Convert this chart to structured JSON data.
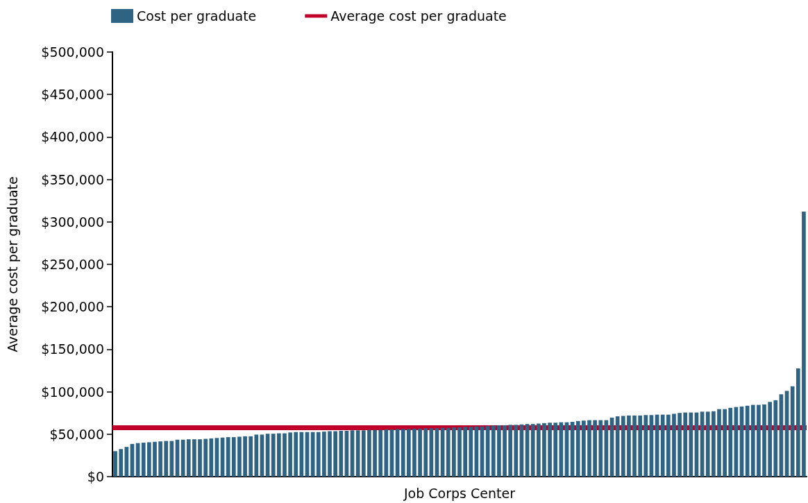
{
  "chart_data": {
    "type": "bar",
    "xlabel": "Job Corps Center",
    "ylabel": "Average cost per graduate",
    "categories": [
      null,
      null,
      null,
      null,
      null,
      null,
      null,
      null,
      null,
      null,
      null,
      null,
      null,
      null,
      null,
      null,
      null,
      null,
      null,
      null,
      null,
      null,
      null,
      null,
      null,
      null,
      null,
      null,
      null,
      null,
      null,
      null,
      null,
      null,
      null,
      null,
      null,
      null,
      null,
      null,
      null,
      null,
      null,
      null,
      null,
      null,
      null,
      null,
      null,
      null,
      null,
      null,
      null,
      null,
      null,
      null,
      null,
      null,
      null,
      null,
      null,
      null,
      null,
      null,
      null,
      null,
      null,
      null,
      null,
      null,
      null,
      null,
      null,
      null,
      null,
      null,
      null,
      null,
      null,
      null,
      null,
      null,
      null,
      null,
      null,
      null,
      null,
      null,
      null,
      null,
      null,
      null,
      null,
      null,
      null,
      null,
      null,
      null,
      null,
      null,
      null,
      null,
      null,
      null,
      null,
      null,
      null,
      null,
      null,
      null,
      null,
      null,
      null,
      null,
      null,
      null,
      null,
      null,
      null,
      null,
      null,
      null,
      null
    ],
    "series": [
      {
        "name": "Cost per graduate",
        "color": "#2e6384",
        "values": [
          30000,
          32500,
          35000,
          38500,
          39500,
          40000,
          40500,
          41000,
          41500,
          42000,
          42000,
          43500,
          43500,
          44000,
          44000,
          44000,
          44500,
          45000,
          45500,
          46000,
          46500,
          46500,
          47000,
          47500,
          47500,
          49500,
          49500,
          50500,
          50500,
          51000,
          51000,
          52000,
          52500,
          52500,
          52500,
          52500,
          52500,
          53000,
          53500,
          53500,
          54000,
          54000,
          54500,
          54500,
          54500,
          55000,
          55000,
          55000,
          55500,
          55500,
          56000,
          56000,
          56000,
          56500,
          56500,
          57000,
          57000,
          57000,
          57500,
          57500,
          58000,
          58000,
          58500,
          58500,
          59000,
          59000,
          59500,
          60000,
          60500,
          60500,
          61000,
          61000,
          61500,
          62000,
          62000,
          62500,
          63000,
          63500,
          63500,
          64000,
          64000,
          64500,
          65500,
          66000,
          66500,
          66500,
          66500,
          66500,
          69500,
          71000,
          71500,
          72000,
          72000,
          72000,
          72500,
          72500,
          73000,
          73000,
          73000,
          74000,
          75000,
          75500,
          75500,
          75500,
          76500,
          76500,
          77000,
          79500,
          79500,
          81000,
          82000,
          82500,
          83500,
          84500,
          84500,
          85000,
          88000,
          90000,
          97000,
          101000,
          106500,
          127500,
          312000
        ]
      }
    ],
    "ref_lines": [
      {
        "axis": "y",
        "value": 57500,
        "label": "Average cost per graduate",
        "color": "#c0002a"
      }
    ],
    "ylim": [
      0,
      500000
    ],
    "yticks": [
      {
        "value": 0,
        "label": "$0"
      },
      {
        "value": 50000,
        "label": "$50,000"
      },
      {
        "value": 100000,
        "label": "$100,000"
      },
      {
        "value": 150000,
        "label": "$150,000"
      },
      {
        "value": 200000,
        "label": "$200,000"
      },
      {
        "value": 250000,
        "label": "$250,000"
      },
      {
        "value": 300000,
        "label": "$300,000"
      },
      {
        "value": 350000,
        "label": "$350,000"
      },
      {
        "value": 400000,
        "label": "$400,000"
      },
      {
        "value": 450000,
        "label": "$450,000"
      },
      {
        "value": 500000,
        "label": "$500,000"
      }
    ],
    "grid": false,
    "legend": "top left"
  }
}
